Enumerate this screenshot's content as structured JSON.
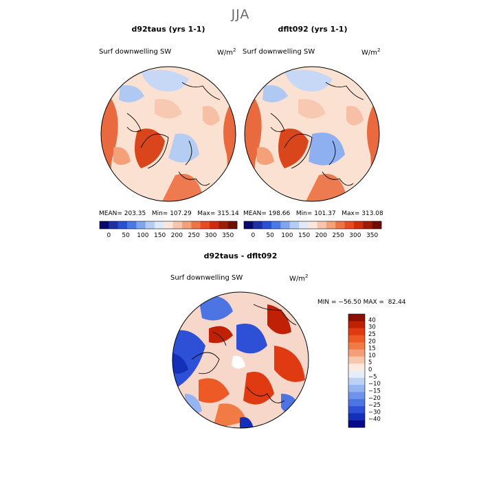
{
  "figure": {
    "season": "JJA"
  },
  "panels": [
    {
      "title": "d92taus (yrs 1-1)",
      "variable": "Surf downwelling SW",
      "units": "W/m",
      "units_exp": "2",
      "stats": "MEAN= 203.35   Min= 107.29   Max= 315.14"
    },
    {
      "title": "dflt092 (yrs 1-1)",
      "variable": "Surf downwelling SW",
      "units": "W/m",
      "units_exp": "2",
      "stats": "MEAN= 198.66   Min= 101.37   Max= 313.08"
    }
  ],
  "diff_panel": {
    "title": "d92taus - dflt092",
    "variable": "Surf downwelling SW",
    "units": "W/m",
    "units_exp": "2",
    "stats": "MIN = −56.50 MAX =  82.44"
  },
  "colorbar_top": {
    "ticks": [
      "0",
      "50",
      "100",
      "150",
      "200",
      "250",
      "300",
      "350"
    ],
    "colors": [
      "#08086b",
      "#1c2fa8",
      "#2a4fd8",
      "#4a78e8",
      "#7fa5f0",
      "#b3cdf5",
      "#dfe9fa",
      "#fce7dc",
      "#f7c4ad",
      "#f4a079",
      "#ef7349",
      "#e84a25",
      "#cf2d10",
      "#a11a08",
      "#6f0d03"
    ]
  },
  "colorbar_diff": {
    "labels": [
      "40",
      "30",
      "25",
      "20",
      "15",
      "10",
      "5",
      "0",
      "−5",
      "−10",
      "−15",
      "−20",
      "−25",
      "−30",
      "−40"
    ],
    "colors": [
      "#8b0d03",
      "#c02105",
      "#e03a12",
      "#ee5a26",
      "#f27a45",
      "#f59f79",
      "#f8c6ad",
      "#fde9e0",
      "#e5eefb",
      "#bdd1f5",
      "#96b4f1",
      "#6f93ec",
      "#4d74e3",
      "#2d50d6",
      "#1530b8",
      "#08088a"
    ]
  }
}
